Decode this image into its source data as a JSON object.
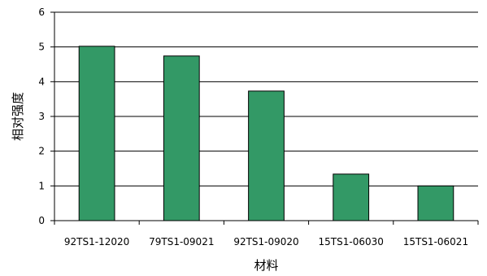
{
  "chart_data": {
    "type": "bar",
    "title": "",
    "xlabel": "材料",
    "ylabel": "相对强度",
    "categories": [
      "92TS1-12020",
      "79TS1-09021",
      "92TS1-09020",
      "15TS1-06030",
      "15TS1-06021"
    ],
    "values": [
      5.02,
      4.74,
      3.73,
      1.34,
      1.0
    ],
    "ylim": [
      0,
      6
    ],
    "yticks": [
      "0",
      "1",
      "2",
      "3",
      "4",
      "5",
      "6"
    ],
    "grid": true,
    "legend": "none",
    "bar_color": "#339966"
  }
}
